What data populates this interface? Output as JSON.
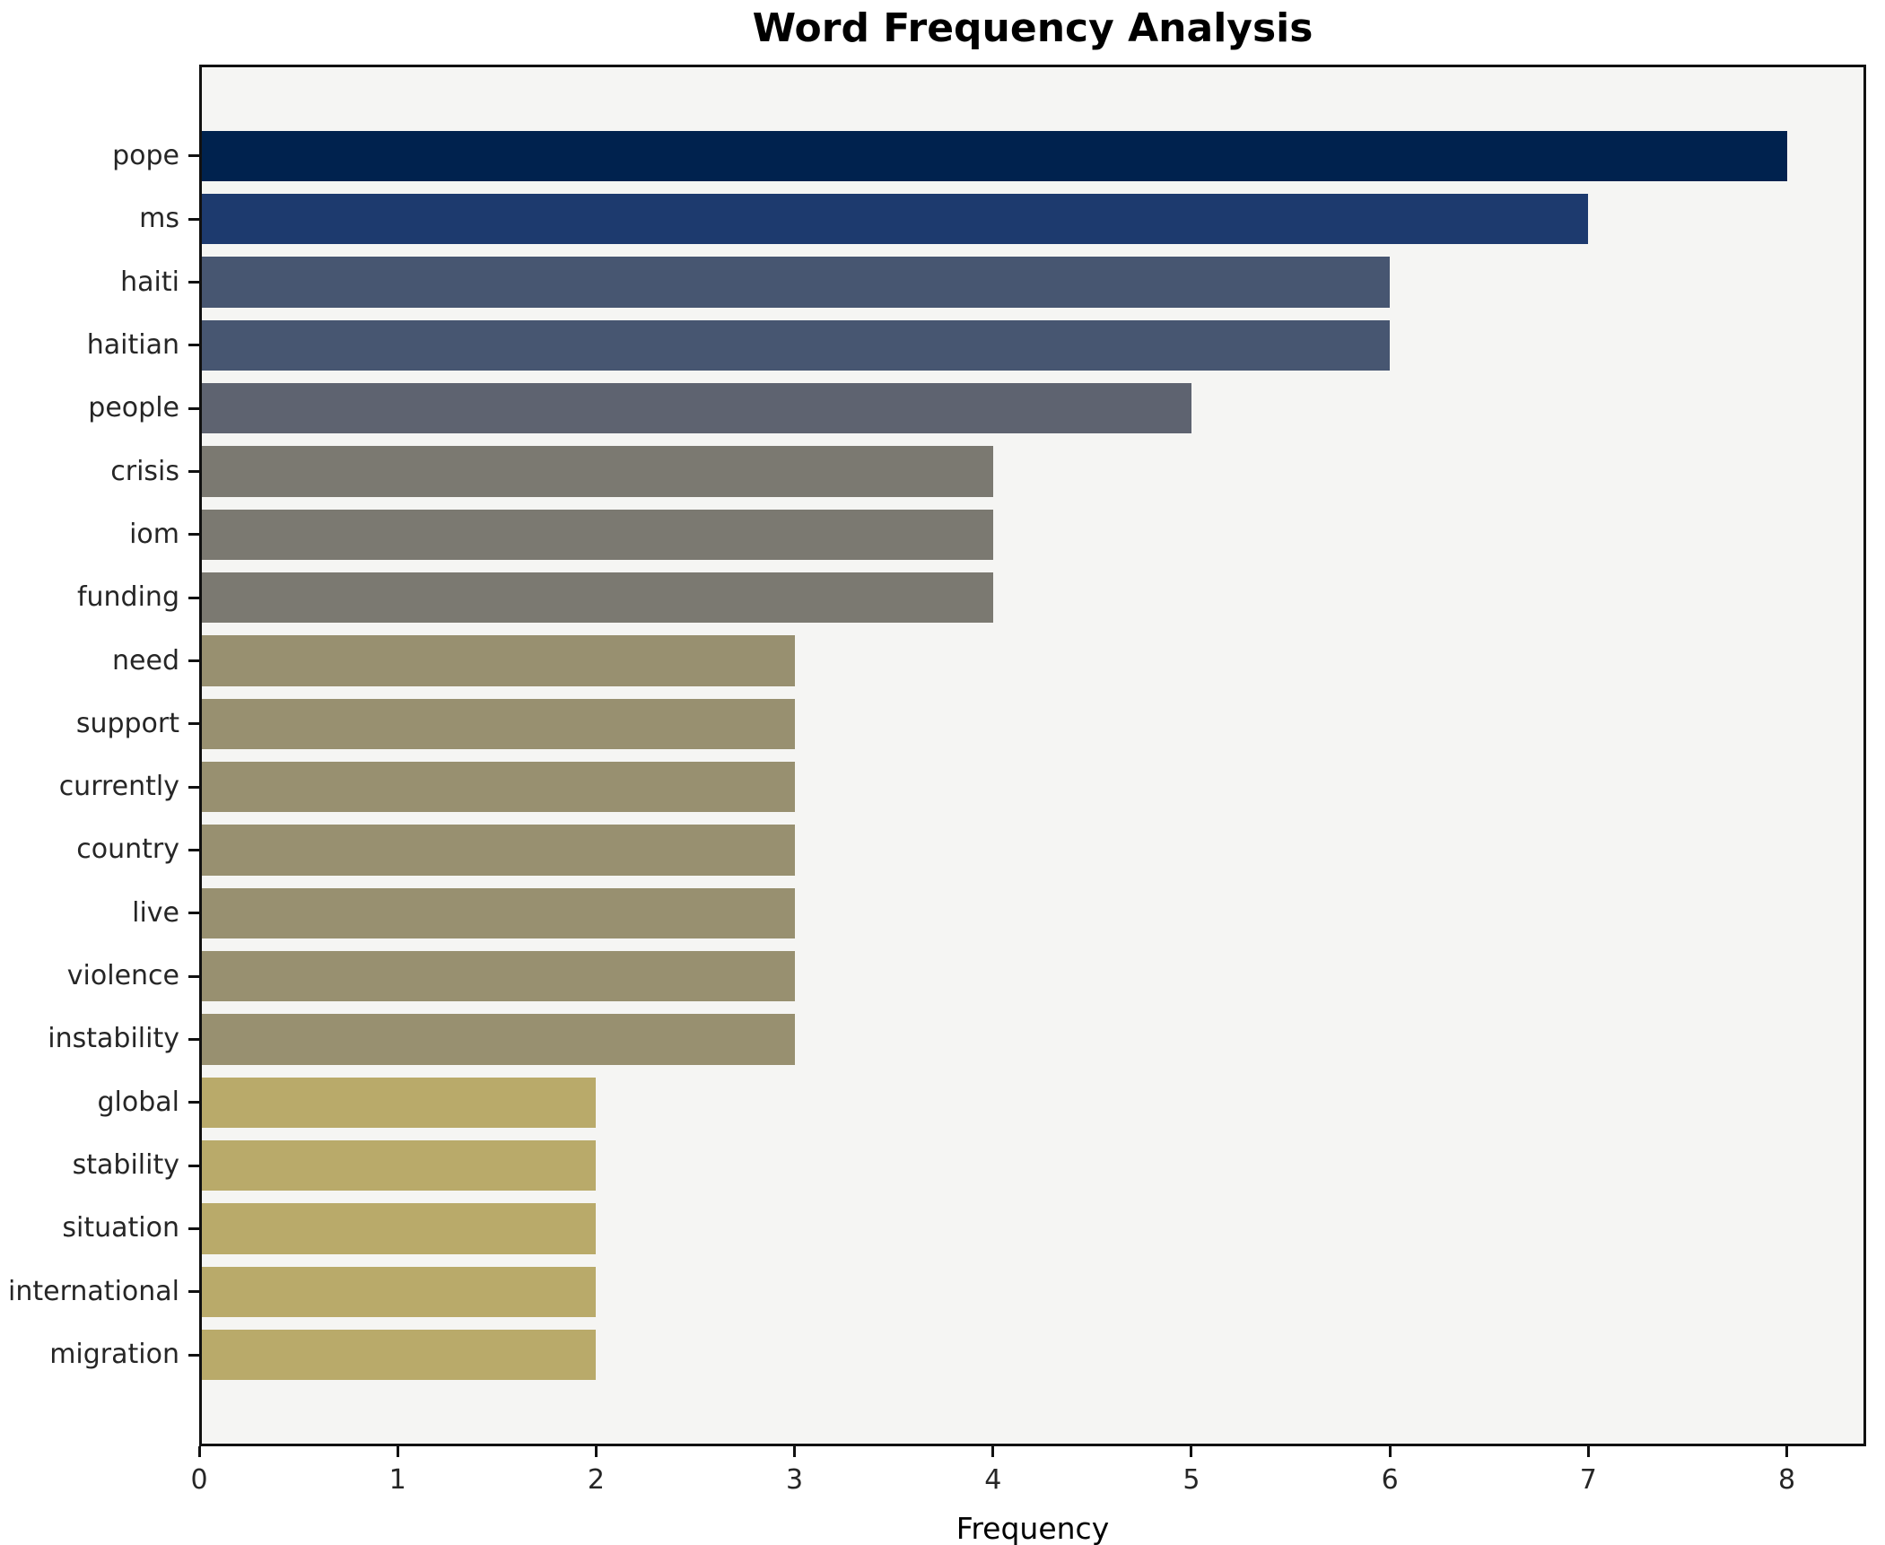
{
  "chart_data": {
    "type": "bar",
    "orientation": "horizontal",
    "title": "Word Frequency Analysis",
    "xlabel": "Frequency",
    "ylabel": "",
    "categories": [
      "pope",
      "ms",
      "haiti",
      "haitian",
      "people",
      "crisis",
      "iom",
      "funding",
      "need",
      "support",
      "currently",
      "country",
      "live",
      "violence",
      "instability",
      "global",
      "stability",
      "situation",
      "international",
      "migration"
    ],
    "values": [
      8,
      7,
      6,
      6,
      5,
      4,
      4,
      4,
      3,
      3,
      3,
      3,
      3,
      3,
      3,
      2,
      2,
      2,
      2,
      2
    ],
    "bar_colors": [
      "#00224e",
      "#1d3a6e",
      "#475671",
      "#475671",
      "#5e6370",
      "#7b7971",
      "#7b7971",
      "#7b7971",
      "#989070",
      "#989070",
      "#989070",
      "#989070",
      "#989070",
      "#989070",
      "#989070",
      "#b9aa6a",
      "#b9aa6a",
      "#b9aa6a",
      "#b9aa6a",
      "#b9aa6a"
    ],
    "x_ticks": [
      0,
      1,
      2,
      3,
      4,
      5,
      6,
      7,
      8
    ],
    "xlim": [
      0,
      8.4
    ],
    "grid": false,
    "legend": false,
    "plot_background": "#f5f5f3",
    "figure_background": "#ffffff"
  }
}
